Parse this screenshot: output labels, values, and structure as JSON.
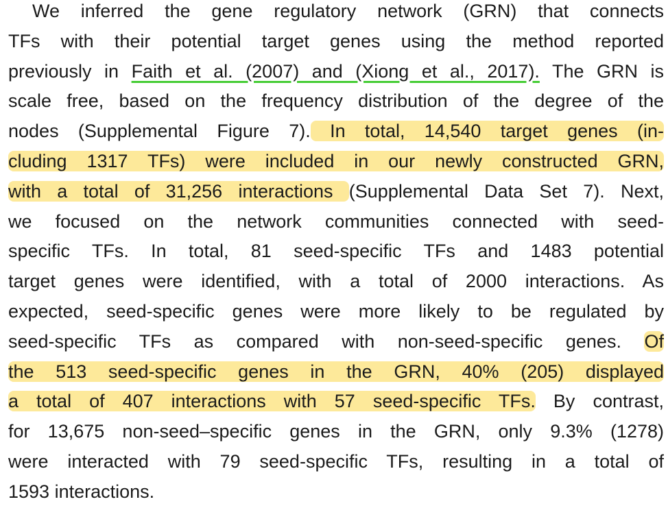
{
  "paragraph": {
    "lines": [
      [
        {
          "text": "We inferred the gene regulatory network (GRN) that connects"
        }
      ],
      [
        {
          "text": "TFs with their potential target genes using the method reported"
        }
      ],
      [
        {
          "text": "previously in "
        },
        {
          "text": "Faith et al. (2007) and (Xiong et al., 2017).",
          "mark": "link"
        },
        {
          "text": " The GRN is"
        }
      ],
      [
        {
          "text": "scale free, based on the frequency distribution of the degree of the"
        }
      ],
      [
        {
          "text": "nodes (Supplemental Figure 7)."
        },
        {
          "text": " In total, 14,540 target genes (in-",
          "mark": "highlight"
        }
      ],
      [
        {
          "text": "cluding 1317 TFs) were included in our newly constructed GRN,",
          "mark": "highlight"
        }
      ],
      [
        {
          "text": "with a total of 31,256 interactions ",
          "mark": "highlight"
        },
        {
          "text": "(Supplemental Data Set 7). Next,"
        }
      ],
      [
        {
          "text": "we focused on the network communities connected with seed-"
        }
      ],
      [
        {
          "text": "specific TFs. In total, 81 seed-specific TFs and 1483 potential"
        }
      ],
      [
        {
          "text": "target genes were identified, with a total of 2000 interactions. As"
        }
      ],
      [
        {
          "text": "expected, seed-specific genes were more likely to be regulated by"
        }
      ],
      [
        {
          "text": "seed-specific TFs as compared with non-seed-specific genes. "
        },
        {
          "text": "Of",
          "mark": "highlight"
        }
      ],
      [
        {
          "text": "the 513 seed-specific genes in the GRN, 40% (205) displayed",
          "mark": "highlight"
        }
      ],
      [
        {
          "text": "a total of 407 interactions with 57 seed-specific TFs.",
          "mark": "highlight"
        },
        {
          "text": " By contrast,"
        }
      ],
      [
        {
          "text": "for 13,675 non-seed–specific genes in the GRN, only 9.3% (1278)"
        }
      ],
      [
        {
          "text": "were interacted with 79 seed-specific TFs, resulting in a total of"
        }
      ],
      [
        {
          "text": "1593 interactions."
        }
      ]
    ]
  }
}
